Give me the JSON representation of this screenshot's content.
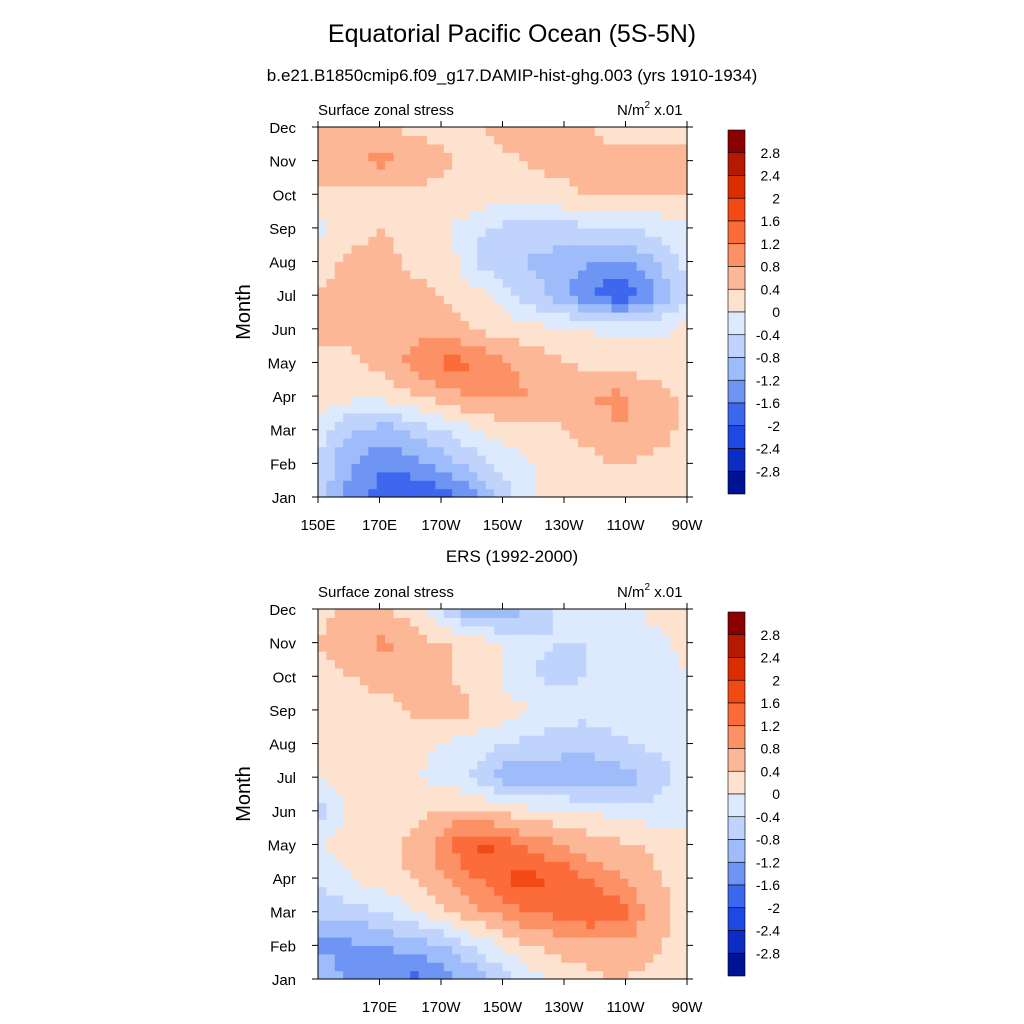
{
  "main_title": "Equatorial Pacific Ocean (5S-5N)",
  "subtitle": "b.e21.B1850cmip6.f09_g17.DAMIP-hist-ghg.003 (yrs 1910-1934)",
  "colorbar": {
    "levels": [
      "2.8",
      "2.4",
      "2",
      "1.6",
      "1.2",
      "0.8",
      "0.4",
      "0",
      "-0.4",
      "-0.8",
      "-1.2",
      "-1.6",
      "-2",
      "-2.4",
      "-2.8"
    ],
    "colors": [
      "#8b0000",
      "#b51a00",
      "#db2e00",
      "#f24a14",
      "#fb6c3a",
      "#fb9164",
      "#fcb796",
      "#fde2cf",
      "#dde9fc",
      "#bfd3fc",
      "#9fbcfa",
      "#6f95f4",
      "#3d67ee",
      "#1f47e3",
      "#0d2cc4",
      "#001394"
    ]
  },
  "chart_data": [
    {
      "type": "heatmap",
      "name": "model",
      "title": "",
      "left_label": "Surface zonal stress",
      "units_label": "N/m",
      "units_sup": "2",
      "units_scale": " x.01",
      "ylabel": "Month",
      "months": [
        "Jan",
        "Feb",
        "Mar",
        "Apr",
        "May",
        "Jun",
        "Jul",
        "Aug",
        "Sep",
        "Oct",
        "Nov",
        "Dec"
      ],
      "xticks": [
        "150E",
        "170E",
        "170W",
        "150W",
        "130W",
        "110W",
        "90W"
      ],
      "xlim": [
        150,
        270
      ],
      "values": [
        [
          -0.5,
          -1.4,
          -1.8,
          -2.0,
          -1.8,
          -1.0,
          -0.3,
          0.2,
          0.3,
          0.4,
          0.3,
          0.2
        ],
        [
          -0.5,
          -1.2,
          -1.6,
          -1.3,
          -0.9,
          -0.5,
          -0.1,
          0.2,
          0.3,
          0.4,
          0.3,
          0.2
        ],
        [
          -0.2,
          -0.8,
          -1.0,
          -0.6,
          -0.3,
          0.1,
          0.2,
          0.3,
          0.5,
          0.8,
          0.6,
          0.3
        ],
        [
          0.3,
          0.1,
          0.1,
          0.4,
          0.7,
          0.8,
          0.9,
          0.6,
          0.8,
          0.9,
          0.6,
          0.3
        ],
        [
          0.4,
          0.3,
          0.6,
          1.0,
          1.4,
          1.1,
          0.7,
          0.5,
          0.3,
          0.2,
          0.2,
          0.1
        ],
        [
          0.4,
          0.5,
          0.7,
          0.7,
          0.5,
          0.3,
          0.2,
          0.1,
          0.0,
          -0.1,
          -0.1,
          0.1
        ],
        [
          0.4,
          0.5,
          0.6,
          0.5,
          0.3,
          0.1,
          -0.5,
          -0.9,
          -1.5,
          -2.0,
          -1.3,
          -0.4
        ],
        [
          0.3,
          0.5,
          0.5,
          0.3,
          0.1,
          -0.6,
          -0.8,
          -0.9,
          -1.2,
          -1.3,
          -0.9,
          -0.3
        ],
        [
          -0.2,
          0.3,
          0.4,
          0.2,
          0.0,
          -0.4,
          -0.6,
          -0.6,
          -0.5,
          -0.4,
          -0.3,
          -0.1
        ],
        [
          0.3,
          0.3,
          0.2,
          0.3,
          0.3,
          0.2,
          0.2,
          0.3,
          0.4,
          0.4,
          0.4,
          0.4
        ],
        [
          0.6,
          0.8,
          0.9,
          0.6,
          0.4,
          0.3,
          0.4,
          0.5,
          0.5,
          0.5,
          0.5,
          0.5
        ],
        [
          0.5,
          0.5,
          0.4,
          0.3,
          0.3,
          0.4,
          0.5,
          0.4,
          0.4,
          0.3,
          0.3,
          0.3
        ]
      ]
    },
    {
      "type": "heatmap",
      "name": "ERS",
      "title": "ERS (1992-2000)",
      "left_label": "Surface zonal stress",
      "units_label": "N/m",
      "units_sup": "2",
      "units_scale": " x.01",
      "ylabel": "Month",
      "months": [
        "Jan",
        "Feb",
        "Mar",
        "Apr",
        "May",
        "Jun",
        "Jul",
        "Aug",
        "Sep",
        "Oct",
        "Nov",
        "Dec"
      ],
      "xticks": [
        "170E",
        "170W",
        "150W",
        "130W",
        "110W",
        "90W"
      ],
      "xlim": [
        150,
        270
      ],
      "values": [
        [
          -0.8,
          -1.4,
          -1.6,
          -1.7,
          -1.3,
          -0.9,
          -0.4,
          0.1,
          0.3,
          0.4,
          0.3,
          0.2
        ],
        [
          -1.3,
          -1.3,
          -1.2,
          -1.0,
          -0.7,
          -0.2,
          0.3,
          0.5,
          0.6,
          0.7,
          0.5,
          0.2
        ],
        [
          -0.7,
          -0.6,
          -0.4,
          0.0,
          0.4,
          0.8,
          1.1,
          1.3,
          1.6,
          1.4,
          0.6,
          0.3
        ],
        [
          -0.3,
          0.0,
          0.2,
          0.5,
          0.9,
          1.3,
          1.8,
          1.6,
          1.2,
          0.8,
          0.5,
          0.2
        ],
        [
          0.0,
          0.2,
          0.3,
          0.5,
          1.3,
          1.7,
          1.2,
          0.9,
          0.6,
          0.5,
          0.3,
          0.1
        ],
        [
          -0.6,
          0.2,
          0.3,
          0.3,
          0.5,
          0.4,
          0.2,
          0.1,
          0.0,
          -0.2,
          -0.2,
          -0.1
        ],
        [
          0.0,
          0.2,
          0.2,
          0.0,
          -0.2,
          -0.6,
          -1.3,
          -1.1,
          -1.2,
          -1.0,
          -0.7,
          -0.2
        ],
        [
          0.1,
          0.3,
          0.2,
          0.1,
          -0.1,
          -0.3,
          -0.5,
          -0.6,
          -0.6,
          -0.5,
          -0.3,
          -0.1
        ],
        [
          0.2,
          0.3,
          0.3,
          0.5,
          0.6,
          0.3,
          0.1,
          -0.2,
          -0.3,
          -0.2,
          -0.1,
          0.0
        ],
        [
          0.3,
          0.4,
          0.5,
          0.6,
          0.4,
          0.2,
          -0.3,
          -0.5,
          -0.4,
          -0.3,
          -0.2,
          0.0
        ],
        [
          0.4,
          0.6,
          0.9,
          0.5,
          0.4,
          0.2,
          -0.3,
          -0.4,
          -0.4,
          -0.3,
          -0.1,
          0.1
        ],
        [
          0.3,
          0.5,
          0.4,
          0.2,
          -0.8,
          -1.3,
          -0.9,
          -0.4,
          -0.2,
          -0.1,
          0.1,
          0.2
        ]
      ]
    }
  ]
}
